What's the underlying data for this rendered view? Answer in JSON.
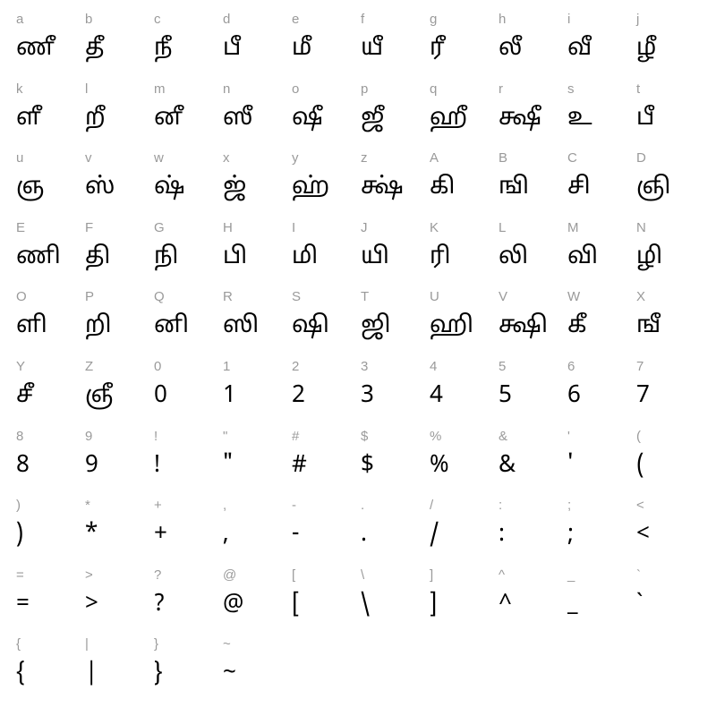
{
  "meta": {
    "type": "glyph-chart",
    "columns": 10,
    "rows": 10,
    "key_color": "#9a9a9a",
    "glyph_color": "#000000",
    "background_color": "#ffffff",
    "key_fontsize": 15,
    "glyph_fontsize": 26
  },
  "cells": [
    {
      "key": "a",
      "glyph": "ணீ"
    },
    {
      "key": "b",
      "glyph": "தீ"
    },
    {
      "key": "c",
      "glyph": "நீ"
    },
    {
      "key": "d",
      "glyph": "பீ"
    },
    {
      "key": "e",
      "glyph": "மீ"
    },
    {
      "key": "f",
      "glyph": "யீ"
    },
    {
      "key": "g",
      "glyph": "ரீ"
    },
    {
      "key": "h",
      "glyph": "லீ"
    },
    {
      "key": "i",
      "glyph": "வீ"
    },
    {
      "key": "j",
      "glyph": "ழீ"
    },
    {
      "key": "k",
      "glyph": "ளீ"
    },
    {
      "key": "l",
      "glyph": "றீ"
    },
    {
      "key": "m",
      "glyph": "னீ"
    },
    {
      "key": "n",
      "glyph": "ஸீ"
    },
    {
      "key": "o",
      "glyph": "ஷீ"
    },
    {
      "key": "p",
      "glyph": "ஜீ"
    },
    {
      "key": "q",
      "glyph": "ஹீ"
    },
    {
      "key": "r",
      "glyph": "க்ஷீ"
    },
    {
      "key": "s",
      "glyph": "உ"
    },
    {
      "key": "t",
      "glyph": "பீ"
    },
    {
      "key": "u",
      "glyph": "ஞ"
    },
    {
      "key": "v",
      "glyph": "ஸ்"
    },
    {
      "key": "w",
      "glyph": "ஷ்"
    },
    {
      "key": "x",
      "glyph": "ஜ்"
    },
    {
      "key": "y",
      "glyph": "ஹ்"
    },
    {
      "key": "z",
      "glyph": "க்ஷ்"
    },
    {
      "key": "A",
      "glyph": "கி"
    },
    {
      "key": "B",
      "glyph": "ஙி"
    },
    {
      "key": "C",
      "glyph": "சி"
    },
    {
      "key": "D",
      "glyph": "ஞி"
    },
    {
      "key": "E",
      "glyph": "ணி"
    },
    {
      "key": "F",
      "glyph": "தி"
    },
    {
      "key": "G",
      "glyph": "நி"
    },
    {
      "key": "H",
      "glyph": "பி"
    },
    {
      "key": "I",
      "glyph": "மி"
    },
    {
      "key": "J",
      "glyph": "யி"
    },
    {
      "key": "K",
      "glyph": "ரி"
    },
    {
      "key": "L",
      "glyph": "லி"
    },
    {
      "key": "M",
      "glyph": "வி"
    },
    {
      "key": "N",
      "glyph": "ழி"
    },
    {
      "key": "O",
      "glyph": "ளி"
    },
    {
      "key": "P",
      "glyph": "றி"
    },
    {
      "key": "Q",
      "glyph": "னி"
    },
    {
      "key": "R",
      "glyph": "ஸி"
    },
    {
      "key": "S",
      "glyph": "ஷி"
    },
    {
      "key": "T",
      "glyph": "ஜி"
    },
    {
      "key": "U",
      "glyph": "ஹி"
    },
    {
      "key": "V",
      "glyph": "க்ஷி"
    },
    {
      "key": "W",
      "glyph": "கீ"
    },
    {
      "key": "X",
      "glyph": "ஙீ"
    },
    {
      "key": "Y",
      "glyph": "சீ"
    },
    {
      "key": "Z",
      "glyph": "ஞீ"
    },
    {
      "key": "0",
      "glyph": "0"
    },
    {
      "key": "1",
      "glyph": "1"
    },
    {
      "key": "2",
      "glyph": "2"
    },
    {
      "key": "3",
      "glyph": "3"
    },
    {
      "key": "4",
      "glyph": "4"
    },
    {
      "key": "5",
      "glyph": "5"
    },
    {
      "key": "6",
      "glyph": "6"
    },
    {
      "key": "7",
      "glyph": "7"
    },
    {
      "key": "8",
      "glyph": "8"
    },
    {
      "key": "9",
      "glyph": "9"
    },
    {
      "key": "!",
      "glyph": "!"
    },
    {
      "key": "\"",
      "glyph": "\""
    },
    {
      "key": "#",
      "glyph": "#"
    },
    {
      "key": "$",
      "glyph": "$"
    },
    {
      "key": "%",
      "glyph": "%"
    },
    {
      "key": "&",
      "glyph": "&"
    },
    {
      "key": "'",
      "glyph": "'"
    },
    {
      "key": "(",
      "glyph": "("
    },
    {
      "key": ")",
      "glyph": ")"
    },
    {
      "key": "*",
      "glyph": "*"
    },
    {
      "key": "+",
      "glyph": "+"
    },
    {
      "key": ",",
      "glyph": ","
    },
    {
      "key": "-",
      "glyph": "-"
    },
    {
      "key": ".",
      "glyph": "."
    },
    {
      "key": "/",
      "glyph": "/"
    },
    {
      "key": ":",
      "glyph": ":"
    },
    {
      "key": ";",
      "glyph": ";"
    },
    {
      "key": "<",
      "glyph": "<"
    },
    {
      "key": "=",
      "glyph": "="
    },
    {
      "key": ">",
      "glyph": ">"
    },
    {
      "key": "?",
      "glyph": "?"
    },
    {
      "key": "@",
      "glyph": "@"
    },
    {
      "key": "[",
      "glyph": "["
    },
    {
      "key": "\\",
      "glyph": "\\"
    },
    {
      "key": "]",
      "glyph": "]"
    },
    {
      "key": "^",
      "glyph": "^"
    },
    {
      "key": "_",
      "glyph": "_"
    },
    {
      "key": "`",
      "glyph": "`"
    },
    {
      "key": "{",
      "glyph": "{"
    },
    {
      "key": "|",
      "glyph": "|"
    },
    {
      "key": "}",
      "glyph": "}"
    },
    {
      "key": "~",
      "glyph": "~"
    },
    {
      "key": "",
      "glyph": ""
    },
    {
      "key": "",
      "glyph": ""
    },
    {
      "key": "",
      "glyph": ""
    },
    {
      "key": "",
      "glyph": ""
    },
    {
      "key": "",
      "glyph": ""
    },
    {
      "key": "",
      "glyph": ""
    }
  ]
}
